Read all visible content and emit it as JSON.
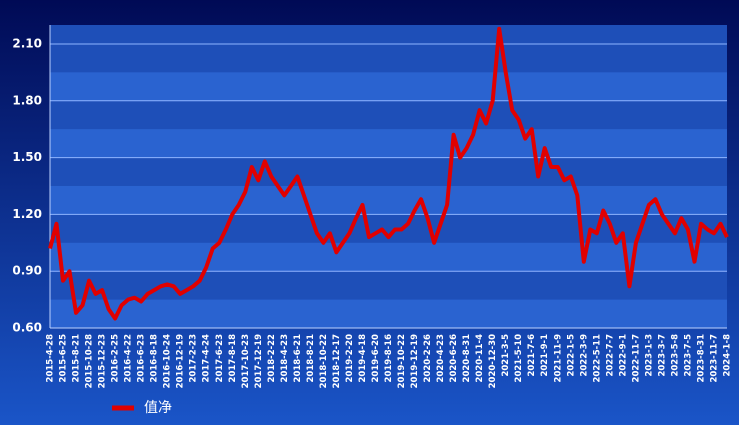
{
  "chart_data": {
    "type": "line",
    "categories": [
      "2015-4-28",
      null,
      "2015-6-25",
      null,
      "2015-8-21",
      null,
      "2015-10-28",
      null,
      "2015-12-23",
      null,
      "2016-2-25",
      null,
      "2016-4-22",
      null,
      "2016-6-23",
      null,
      "2016-8-18",
      null,
      "2016-10-24",
      null,
      "2016-12-19",
      null,
      "2017-2-23",
      null,
      "2017-4-24",
      null,
      "2017-6-23",
      null,
      "2017-8-18",
      null,
      "2017-10-23",
      null,
      "2017-12-19",
      null,
      "2018-2-22",
      null,
      "2018-4-23",
      null,
      "2018-6-21",
      null,
      "2018-8-21",
      null,
      "2018-10-22",
      null,
      "2018-12-17",
      null,
      "2019-2-20",
      null,
      "2019-4-18",
      null,
      "2019-6-20",
      null,
      "2019-8-16",
      null,
      "2019-10-22",
      null,
      "2019-12-19",
      null,
      "2020-2-26",
      null,
      "2020-4-23",
      null,
      "2020-6-26",
      null,
      "2020-8-31",
      null,
      "2020-11-4",
      null,
      "2020-12-30",
      null,
      "2021-3-5",
      null,
      "2021-5-10",
      null,
      "2021-7-6",
      null,
      "2021-9-1",
      null,
      "2021-11-9",
      null,
      "2022-1-5",
      null,
      "2022-3-9",
      null,
      "2022-5-11",
      null,
      "2022-7-7",
      null,
      "2022-9-1",
      null,
      "2022-11-7",
      null,
      "2023-1-3",
      null,
      "2023-3-7",
      null,
      "2023-5-8",
      null,
      "2023-7-5",
      null,
      "2023-8-31",
      null,
      "2023-11-7",
      null,
      "2024-1-8"
    ],
    "series": [
      {
        "name": "值净",
        "color": "#e00000",
        "values": [
          1.02,
          1.15,
          0.85,
          0.9,
          0.68,
          0.72,
          0.85,
          0.78,
          0.8,
          0.7,
          0.65,
          0.72,
          0.75,
          0.76,
          0.74,
          0.78,
          0.8,
          0.82,
          0.83,
          0.82,
          0.78,
          0.8,
          0.82,
          0.85,
          0.92,
          1.02,
          1.05,
          1.12,
          1.2,
          1.25,
          1.32,
          1.45,
          1.38,
          1.48,
          1.4,
          1.35,
          1.3,
          1.35,
          1.4,
          1.3,
          1.2,
          1.1,
          1.05,
          1.1,
          1.0,
          1.05,
          1.1,
          1.18,
          1.25,
          1.08,
          1.1,
          1.12,
          1.08,
          1.12,
          1.12,
          1.15,
          1.22,
          1.28,
          1.18,
          1.05,
          1.15,
          1.25,
          1.62,
          1.5,
          1.55,
          1.62,
          1.75,
          1.68,
          1.8,
          2.18,
          1.95,
          1.75,
          1.7,
          1.6,
          1.65,
          1.4,
          1.55,
          1.45,
          1.45,
          1.38,
          1.4,
          1.3,
          0.95,
          1.12,
          1.1,
          1.22,
          1.15,
          1.05,
          1.1,
          0.82,
          1.05,
          1.15,
          1.25,
          1.28,
          1.2,
          1.15,
          1.1,
          1.18,
          1.12,
          0.95,
          1.15,
          1.12,
          1.1,
          1.15,
          1.08
        ]
      }
    ],
    "ylim": [
      0.6,
      2.2
    ],
    "yticks": [
      {
        "value": 0.6,
        "label": "0.60"
      },
      {
        "value": 0.9,
        "label": "0.90"
      },
      {
        "value": 1.2,
        "label": "1.20"
      },
      {
        "value": 1.5,
        "label": "1.50"
      },
      {
        "value": 1.8,
        "label": "1.80"
      },
      {
        "value": 2.1,
        "label": "2.10"
      }
    ],
    "grid": true
  }
}
